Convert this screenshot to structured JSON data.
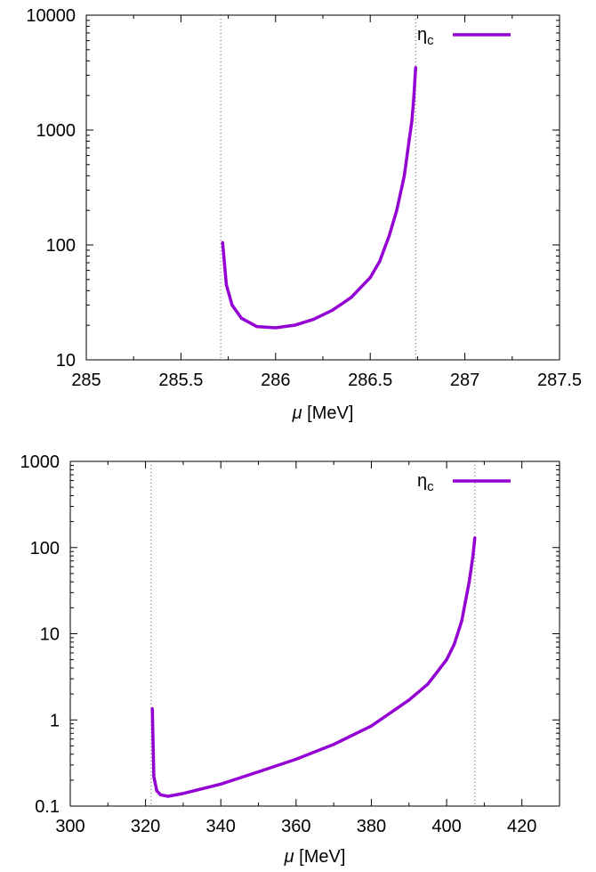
{
  "chart_data": [
    {
      "type": "line",
      "title": "",
      "xlabel_var": "μ",
      "xlabel_unit": "[MeV]",
      "ylabel": "",
      "xlim": [
        285,
        287.5
      ],
      "ylim": [
        10,
        10000
      ],
      "yscale": "log",
      "xticks": [
        285,
        285.5,
        286,
        286.5,
        287,
        287.5
      ],
      "xtick_labels": [
        "285",
        "285.5",
        "286",
        "286.5",
        "287",
        "287.5"
      ],
      "yticks": [
        10,
        100,
        1000,
        10000
      ],
      "ytick_labels": [
        "10",
        "100",
        "1000",
        "10000"
      ],
      "grid": false,
      "legend_position": "top-right",
      "vlines": [
        285.71,
        286.74
      ],
      "series": [
        {
          "name": "η",
          "name_sub": "c",
          "color": "#9400d3",
          "x": [
            285.72,
            285.74,
            285.77,
            285.82,
            285.9,
            286.0,
            286.1,
            286.2,
            286.3,
            286.4,
            286.5,
            286.55,
            286.6,
            286.64,
            286.68,
            286.7,
            286.72,
            286.73,
            286.74
          ],
          "y": [
            105,
            45,
            30,
            23,
            19.5,
            19,
            20,
            22.5,
            27,
            35,
            52,
            72,
            120,
            200,
            400,
            700,
            1200,
            1900,
            3500
          ]
        }
      ]
    },
    {
      "type": "line",
      "title": "",
      "xlabel_var": "μ",
      "xlabel_unit": "[MeV]",
      "ylabel": "",
      "xlim": [
        300,
        430
      ],
      "ylim": [
        0.1,
        1000
      ],
      "yscale": "log",
      "xticks": [
        300,
        320,
        340,
        360,
        380,
        400,
        420
      ],
      "xtick_labels": [
        "300",
        "320",
        "340",
        "360",
        "380",
        "400",
        "420"
      ],
      "yticks": [
        0.1,
        1,
        10,
        100,
        1000
      ],
      "ytick_labels": [
        "0.1",
        "1",
        "10",
        "100",
        "1000"
      ],
      "grid": false,
      "legend_position": "top-right",
      "vlines": [
        321.5,
        407.5
      ],
      "series": [
        {
          "name": "η",
          "name_sub": "c",
          "color": "#9400d3",
          "x": [
            321.8,
            322.2,
            323,
            324,
            326,
            330,
            340,
            350,
            360,
            370,
            380,
            390,
            395,
            400,
            402,
            404,
            406,
            407,
            407.5
          ],
          "y": [
            1.35,
            0.22,
            0.15,
            0.135,
            0.13,
            0.14,
            0.18,
            0.25,
            0.35,
            0.52,
            0.85,
            1.7,
            2.6,
            5,
            7.5,
            14,
            40,
            80,
            130
          ]
        }
      ]
    }
  ]
}
